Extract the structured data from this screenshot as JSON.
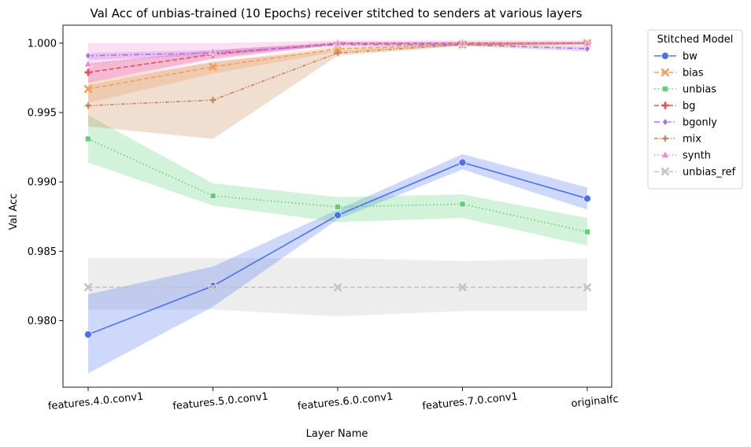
{
  "chart_data": {
    "type": "line",
    "title": "Val Acc of unbias-trained (10 Epochs) receiver stitched to senders at various layers",
    "xlabel": "Layer Name",
    "ylabel": "Val Acc",
    "categories": [
      "features.4.0.conv1",
      "features.5.0.conv1",
      "features.6.0.conv1",
      "features.7.0.conv1",
      "originalfc"
    ],
    "ylim": [
      0.9752,
      1.0013
    ],
    "yticks": [
      0.98,
      0.985,
      0.99,
      0.995,
      1.0
    ],
    "ytick_labels": [
      "0.980",
      "0.985",
      "0.990",
      "0.995",
      "1.000"
    ],
    "grid": false,
    "legend": {
      "title": "Stitched Model",
      "placement": "outside-right"
    },
    "series": [
      {
        "name": "bw",
        "color": "#4c72f0",
        "dash": "solid",
        "marker": "circle",
        "values": [
          0.979,
          0.9825,
          0.9876,
          0.9914,
          0.9888
        ],
        "lower": [
          0.9762,
          0.981,
          0.9873,
          0.9909,
          0.988
        ],
        "upper": [
          0.9819,
          0.9839,
          0.988,
          0.992,
          0.9896
        ]
      },
      {
        "name": "bias",
        "color": "#f5a05a",
        "dash": "dashed",
        "marker": "x",
        "values": [
          0.9967,
          0.9983,
          0.9996,
          0.9999,
          1.0
        ],
        "lower": [
          0.9957,
          0.9978,
          0.9994,
          0.9998,
          0.9999
        ],
        "upper": [
          0.9973,
          0.9986,
          0.9998,
          1.0,
          1.0001
        ]
      },
      {
        "name": "unbias",
        "color": "#5fd07a",
        "dash": "dotted",
        "marker": "square",
        "values": [
          0.9931,
          0.989,
          0.9882,
          0.9884,
          0.9864
        ],
        "lower": [
          0.9914,
          0.9883,
          0.9871,
          0.9874,
          0.9854
        ],
        "upper": [
          0.9948,
          0.9899,
          0.9889,
          0.9891,
          0.9874
        ]
      },
      {
        "name": "bg",
        "color": "#e8505b",
        "dash": "dashed",
        "marker": "plus",
        "values": [
          0.9979,
          0.9992,
          1.0,
          1.0,
          1.0
        ],
        "lower": [
          0.9972,
          0.9989,
          0.9999,
          0.9999,
          0.9999
        ],
        "upper": [
          0.9985,
          0.9995,
          1.0001,
          1.0001,
          1.0001
        ]
      },
      {
        "name": "bgonly",
        "color": "#a970e8",
        "dash": "dashdot",
        "marker": "diamond",
        "values": [
          0.9991,
          0.9993,
          0.9999,
          0.9999,
          0.9996
        ],
        "lower": [
          0.9988,
          0.9991,
          0.9998,
          0.9998,
          0.9994
        ],
        "upper": [
          0.9993,
          0.9995,
          1.0,
          1.0,
          0.9998
        ]
      },
      {
        "name": "mix",
        "color": "#c8875a",
        "dash": "dashdotdot",
        "marker": "star",
        "values": [
          0.9955,
          0.9959,
          0.9993,
          0.9999,
          1.0
        ],
        "lower": [
          0.994,
          0.9931,
          0.9991,
          0.9998,
          0.9999
        ],
        "upper": [
          0.997,
          0.9987,
          0.9995,
          1.0,
          1.0001
        ]
      },
      {
        "name": "synth",
        "color": "#ee8ad6",
        "dash": "dotted",
        "marker": "triangle",
        "values": [
          0.9985,
          0.9994,
          1.0,
          1.0,
          1.0
        ],
        "lower": [
          0.9971,
          0.9988,
          0.9999,
          0.9999,
          0.9999
        ],
        "upper": [
          1.0,
          1.0,
          1.0002,
          1.0002,
          1.0002
        ]
      },
      {
        "name": "unbias_ref",
        "color": "#c4c4c4",
        "dash": "dashed",
        "marker": "x",
        "values": [
          0.9824,
          0.9824,
          0.9824,
          0.9824,
          0.9824
        ],
        "lower": [
          0.9808,
          0.9808,
          0.9803,
          0.9807,
          0.9807
        ],
        "upper": [
          0.9845,
          0.9845,
          0.9845,
          0.9843,
          0.9845
        ]
      }
    ]
  }
}
